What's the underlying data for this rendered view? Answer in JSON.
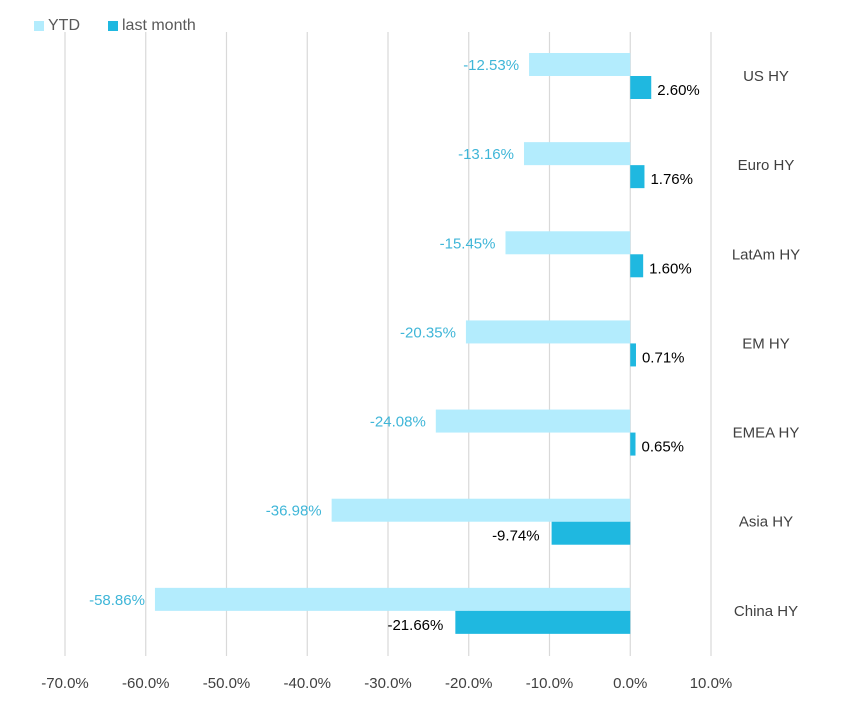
{
  "chart_data": {
    "type": "bar",
    "orientation": "horizontal",
    "categories": [
      "US HY",
      "Euro HY",
      "LatAm HY",
      "EM HY",
      "EMEA HY",
      "Asia HY",
      "China HY"
    ],
    "series": [
      {
        "name": "YTD",
        "values": [
          -12.53,
          -13.16,
          -15.45,
          -20.35,
          -24.08,
          -36.98,
          -58.86
        ],
        "labels": [
          "-12.53%",
          "-13.16%",
          "-15.45%",
          "-20.35%",
          "-24.08%",
          "-36.98%",
          "-58.86%"
        ],
        "color": "#b3ecfd",
        "label_color": "#3fb6d8"
      },
      {
        "name": "last month",
        "values": [
          2.6,
          1.76,
          1.6,
          0.71,
          0.65,
          -9.74,
          -21.66
        ],
        "labels": [
          "2.60%",
          "1.76%",
          "1.60%",
          "0.71%",
          "0.65%",
          "-9.74%",
          "-21.66%"
        ],
        "color": "#1fb8e0",
        "label_color": "#000000"
      }
    ],
    "x_ticks": [
      -70,
      -60,
      -50,
      -40,
      -30,
      -20,
      -10,
      0,
      10
    ],
    "x_tick_labels": [
      "-70.0%",
      "-60.0%",
      "-50.0%",
      "-40.0%",
      "-30.0%",
      "-20.0%",
      "-10.0%",
      "0.0%",
      "10.0%"
    ],
    "xlim": [
      -70,
      10
    ],
    "grid": true,
    "legend_position": "top-left",
    "title": "",
    "xlabel": "",
    "ylabel": ""
  }
}
